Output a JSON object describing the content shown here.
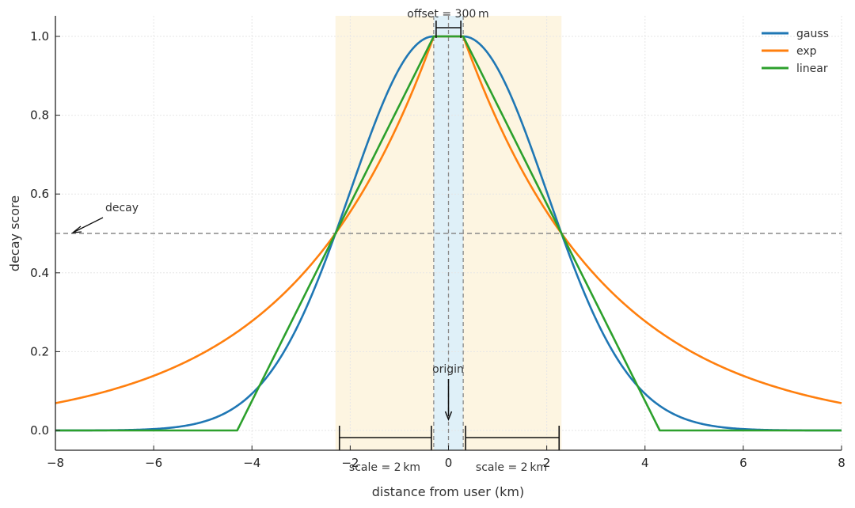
{
  "chart_data": {
    "type": "line",
    "title": "",
    "xlabel": "distance from user (km)",
    "ylabel": "decay score",
    "xlim": [
      -8,
      8
    ],
    "ylim": [
      -0.05,
      1.05
    ],
    "x_ticks": [
      -8,
      -6,
      -4,
      -2,
      0,
      2,
      4,
      6,
      8
    ],
    "x_tick_labels": [
      "−8",
      "−6",
      "−4",
      "−2",
      "0",
      "2",
      "4",
      "6",
      "8"
    ],
    "y_ticks": [
      0.0,
      0.2,
      0.4,
      0.6,
      0.8,
      1.0
    ],
    "y_tick_labels": [
      "0.0",
      "0.2",
      "0.4",
      "0.6",
      "0.8",
      "1.0"
    ],
    "grid": true,
    "legend_position": "top-right",
    "parameters": {
      "origin": 0,
      "offset_km": 0.3,
      "scale_km": 2,
      "decay": 0.5
    },
    "series": [
      {
        "name": "gauss",
        "color": "#1f77b4",
        "function": "gauss",
        "x": [
          -8,
          -6,
          -4.3,
          -4,
          -3,
          -2.3,
          -2,
          -1,
          -0.3,
          0,
          0.3,
          1,
          2,
          2.3,
          3,
          4,
          4.3,
          6,
          8
        ],
        "values": [
          0.0,
          0.005,
          0.0625,
          0.093,
          0.285,
          0.5,
          0.57,
          0.934,
          1.0,
          1.0,
          1.0,
          0.934,
          0.57,
          0.5,
          0.285,
          0.093,
          0.0625,
          0.005,
          0.0
        ]
      },
      {
        "name": "exp",
        "color": "#ff7f0e",
        "function": "exp",
        "x": [
          -8,
          -6,
          -4.3,
          -4,
          -3,
          -2.3,
          -2,
          -1,
          -0.3,
          0,
          0.3,
          1,
          2,
          2.3,
          3,
          4,
          4.3,
          6,
          8
        ],
        "values": [
          0.069,
          0.139,
          0.25,
          0.277,
          0.392,
          0.5,
          0.555,
          0.785,
          1.0,
          1.0,
          1.0,
          0.785,
          0.555,
          0.5,
          0.392,
          0.277,
          0.25,
          0.139,
          0.069
        ]
      },
      {
        "name": "linear",
        "color": "#2ca02c",
        "function": "linear",
        "x": [
          -8,
          -4.3,
          -2.3,
          -0.3,
          0.3,
          2.3,
          4.3,
          8
        ],
        "values": [
          0.0,
          0.0,
          0.5,
          1.0,
          1.0,
          0.5,
          0.0,
          0.0
        ]
      }
    ],
    "reference_lines": [
      {
        "name": "decay-line",
        "axis": "y",
        "value": 0.5,
        "style": "dashed",
        "color": "#888888"
      }
    ],
    "shaded_regions": [
      {
        "name": "scale-region",
        "x_range": [
          -2.3,
          2.3
        ],
        "color": "#fdf5e1"
      },
      {
        "name": "offset-region",
        "x_range": [
          -0.3,
          0.3
        ],
        "color": "#dff0f8"
      }
    ],
    "annotations": {
      "offset_label": "offset = 300 m",
      "decay_label": "decay",
      "origin_label": "origin",
      "scale_left_label": "scale = 2 km",
      "scale_right_label": "scale = 2 km"
    },
    "colors": {
      "axis": "#222222",
      "grid": "#e6e6e6",
      "annotation_line": "#111111",
      "dashed": "#888888"
    }
  }
}
